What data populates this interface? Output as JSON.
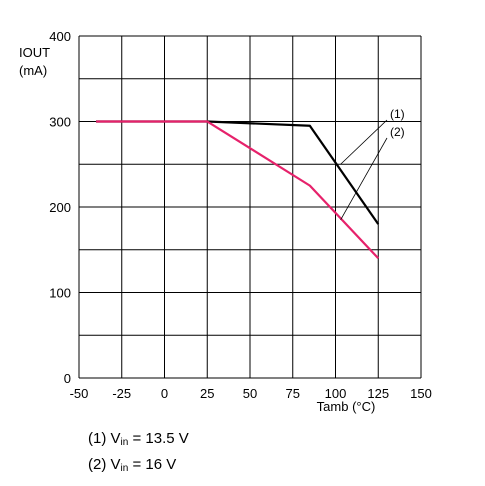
{
  "chart_data": {
    "type": "line",
    "title": "",
    "ylabel_line1": "IOUT",
    "ylabel_line2": "(mA)",
    "xlabel": "Tamb (°C)",
    "xlim": [
      -50,
      150
    ],
    "ylim": [
      0,
      400
    ],
    "x_ticks": [
      -50,
      -25,
      0,
      25,
      50,
      75,
      100,
      125,
      150
    ],
    "x_tick_labels": [
      "-50",
      "-25",
      "0",
      "25",
      "50",
      "75",
      "100",
      "125",
      "150"
    ],
    "y_ticks": [
      0,
      100,
      200,
      300,
      400
    ],
    "y_tick_labels": [
      "0",
      "100",
      "200",
      "300",
      "400"
    ],
    "y_minor_ticks": [
      50,
      150,
      250,
      350
    ],
    "grid": true,
    "series": [
      {
        "name": "(1)",
        "color": "#000000",
        "x": [
          -40,
          25,
          85,
          125
        ],
        "y": [
          300,
          300,
          295,
          180
        ],
        "callout_anchor": [
          103,
          250
        ]
      },
      {
        "name": "(2)",
        "color": "#e6226b",
        "x": [
          -40,
          25,
          85,
          125
        ],
        "y": [
          300,
          300,
          225,
          140
        ],
        "callout_anchor": [
          103,
          185
        ]
      }
    ],
    "notes": [
      {
        "prefix": "(1) V",
        "sub": "in",
        "suffix": " = 13.5 V"
      },
      {
        "prefix": "(2) V",
        "sub": "in",
        "suffix": " = 16 V"
      }
    ]
  }
}
